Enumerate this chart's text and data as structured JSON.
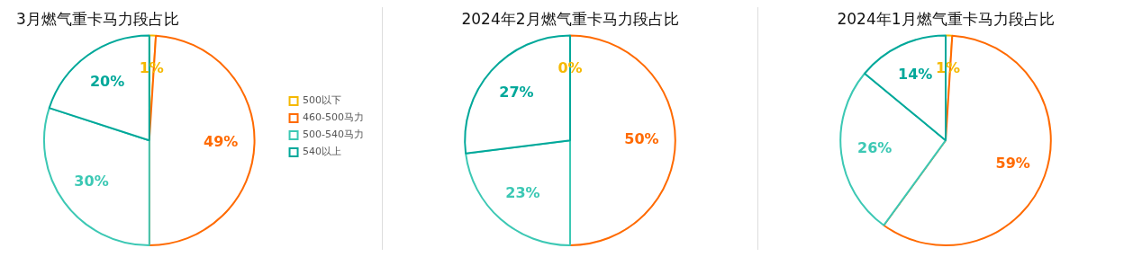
{
  "chart_data": [
    {
      "type": "pie",
      "title": "3月燃气重卡马力段占比",
      "categories": [
        "500以下",
        "460-500马力",
        "500-540马力",
        "540以上"
      ],
      "values": [
        1,
        49,
        30,
        20
      ],
      "value_labels": [
        "1%",
        "49%",
        "30%",
        "20%"
      ],
      "colors": [
        "#f5b800",
        "#ff6a00",
        "#3cc8b4",
        "#00a89a"
      ],
      "legend": "right"
    },
    {
      "type": "pie",
      "title": "2024年2月燃气重卡马力段占比",
      "categories": [
        null,
        null,
        null,
        null
      ],
      "values": [
        0,
        50,
        23,
        27
      ],
      "value_labels": [
        "0%",
        "50%",
        "23%",
        "27%"
      ],
      "colors": [
        "#f5b800",
        "#ff6a00",
        "#3cc8b4",
        "#00a89a"
      ],
      "legend": false
    },
    {
      "type": "pie",
      "title": "2024年1月燃气重卡马力段占比",
      "categories": [
        null,
        null,
        null,
        null
      ],
      "values": [
        1,
        59,
        26,
        14
      ],
      "value_labels": [
        "1%",
        "59%",
        "26%",
        "14%"
      ],
      "colors": [
        "#f5b800",
        "#ff6a00",
        "#3cc8b4",
        "#00a89a"
      ],
      "legend": false
    }
  ]
}
